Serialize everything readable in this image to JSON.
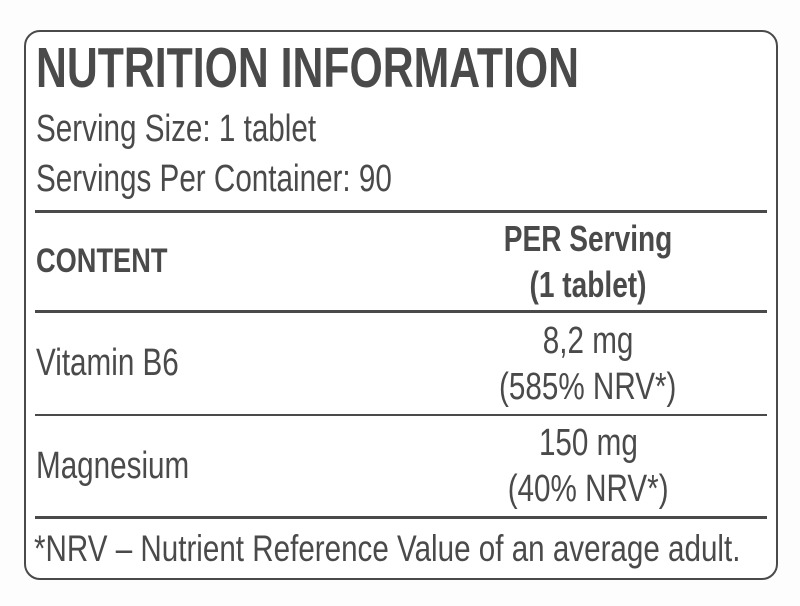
{
  "label": {
    "title": "NUTRITION INFORMATION",
    "serving_size": "Serving Size: 1 tablet",
    "servings_per_container": "Servings Per Container: 90",
    "table": {
      "header": {
        "content": "CONTENT",
        "per_serving_line1": "PER Serving",
        "per_serving_line2": "(1 tablet)"
      },
      "rows": [
        {
          "name": "Vitamin B6",
          "amount": "8,2 mg",
          "nrv": "(585% NRV*)"
        },
        {
          "name": "Magnesium",
          "amount": "150 mg",
          "nrv": "(40% NRV*)"
        }
      ]
    },
    "footnote": "*NRV – Nutrient Reference Value of an average adult.",
    "colors": {
      "text": "#4a4a4a",
      "border": "#4a4a4a",
      "background": "#ffffff"
    }
  }
}
